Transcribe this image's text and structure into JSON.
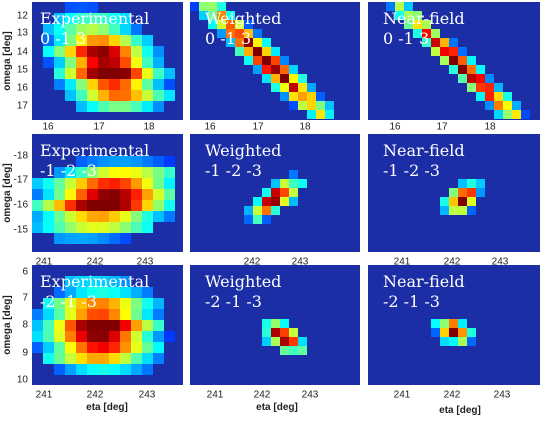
{
  "figure": {
    "y_axis_label": "omega [deg]",
    "x_axis_label": "eta [deg]",
    "panels": [
      [
        {
          "title": "Experimental",
          "hkl": "0 -1 3"
        },
        {
          "title": "Weighted",
          "hkl": "0 -1 3"
        },
        {
          "title": "Near-field",
          "hkl": "0 -1 3"
        }
      ],
      [
        {
          "title": "Experimental",
          "hkl": "-1 -2 -3"
        },
        {
          "title": "Weighted",
          "hkl": "-1 -2 -3"
        },
        {
          "title": "Near-field",
          "hkl": "-1 -2 -3"
        }
      ],
      [
        {
          "title": "Experimental",
          "hkl": "-2 -1 -3"
        },
        {
          "title": "Weighted",
          "hkl": "-2 -1 -3"
        },
        {
          "title": "Near-field",
          "hkl": "-2 -1 -3"
        }
      ]
    ],
    "yticks": [
      [
        "12",
        "13",
        "14",
        "15",
        "16",
        "17"
      ],
      [
        "-18",
        "-17",
        "-16",
        "-15"
      ],
      [
        "6",
        "7",
        "8",
        "9",
        "10"
      ]
    ],
    "xticks": [
      [
        [
          "16",
          "17",
          "18"
        ],
        [
          "16",
          "17",
          "18"
        ],
        [
          "16",
          "17",
          "18"
        ]
      ],
      [
        [
          "241",
          "242",
          "243"
        ],
        [
          "242",
          "243"
        ],
        [
          "241",
          "242",
          "243"
        ]
      ],
      [
        [
          "241",
          "242",
          "243"
        ],
        [
          "241",
          "242",
          "243"
        ],
        [
          "241",
          "242",
          "243"
        ]
      ]
    ]
  }
}
